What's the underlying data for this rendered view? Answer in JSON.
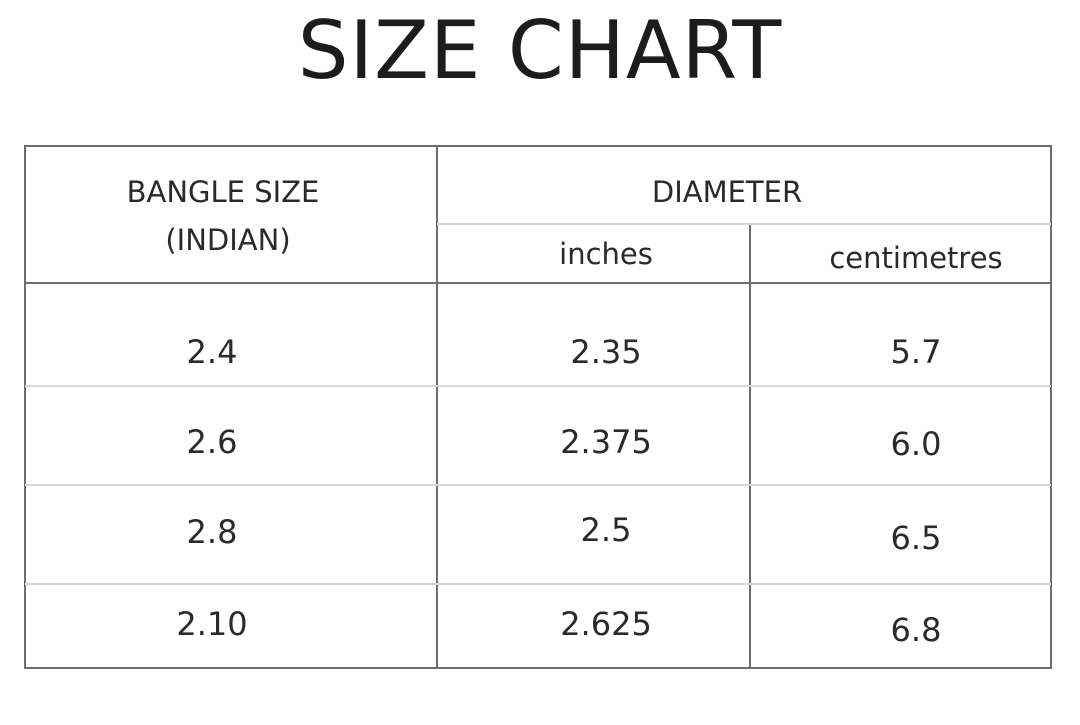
{
  "title": "SIZE CHART",
  "table": {
    "headers": {
      "size_line1": "BANGLE SIZE",
      "size_line2": "(INDIAN)",
      "diameter": "DIAMETER",
      "inches": "inches",
      "centimetres": "centimetres"
    },
    "rows": [
      {
        "size": "2.4",
        "inches": "2.35",
        "cm": "5.7"
      },
      {
        "size": "2.6",
        "inches": "2.375",
        "cm": "6.0"
      },
      {
        "size": "2.8",
        "inches": "2.5",
        "cm": "6.5"
      },
      {
        "size": "2.10",
        "inches": "2.625",
        "cm": "6.8"
      }
    ]
  }
}
